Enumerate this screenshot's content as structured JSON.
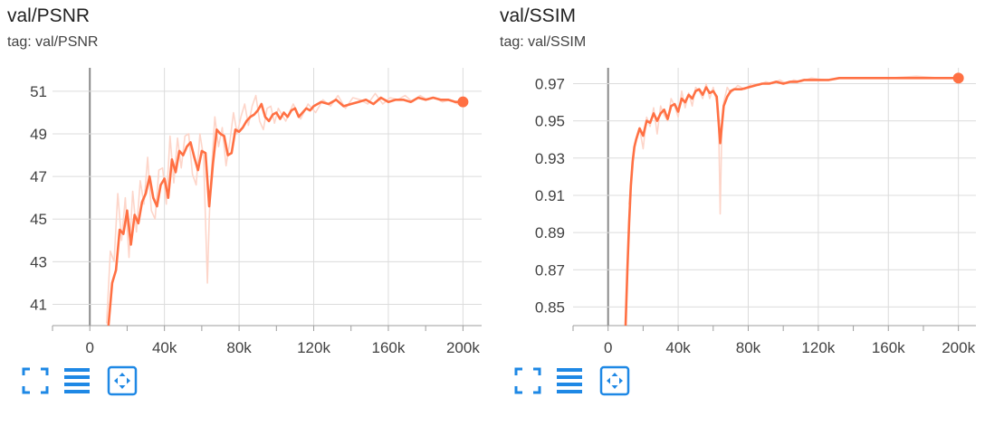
{
  "accent_color": "#ff7043",
  "icons": [
    "fullscreen-icon",
    "data-table-icon",
    "fit-domain-icon"
  ],
  "chart_data": [
    {
      "type": "line",
      "title": "val/PSNR",
      "subtitle": "tag: val/PSNR",
      "xlabel": "",
      "ylabel": "",
      "xlim": [
        -20000,
        210000
      ],
      "ylim": [
        40.0,
        52.1
      ],
      "x_ticks": [
        0,
        40000,
        80000,
        120000,
        160000,
        200000
      ],
      "x_tick_labels": [
        "0",
        "40k",
        "80k",
        "120k",
        "160k",
        "200k"
      ],
      "y_ticks": [
        41,
        43,
        45,
        47,
        49,
        51
      ],
      "y_tick_labels": [
        "41",
        "43",
        "45",
        "47",
        "49",
        "51"
      ],
      "grid": true,
      "legend": "none",
      "series": [
        {
          "smoothed": true,
          "color": "#ff7043",
          "x": [
            10000,
            12000,
            14000,
            16000,
            18000,
            20000,
            22000,
            24000,
            26000,
            28000,
            30000,
            32000,
            34000,
            36000,
            38000,
            40000,
            42000,
            44000,
            46000,
            48000,
            50000,
            52000,
            54000,
            56000,
            58000,
            60000,
            62000,
            64000,
            66000,
            68000,
            70000,
            72000,
            74000,
            76000,
            78000,
            80000,
            82000,
            84000,
            86000,
            88000,
            90000,
            92000,
            94000,
            96000,
            98000,
            100000,
            102000,
            104000,
            106000,
            108000,
            110000,
            112000,
            114000,
            116000,
            118000,
            120000,
            124000,
            128000,
            132000,
            136000,
            140000,
            144000,
            148000,
            152000,
            156000,
            160000,
            164000,
            168000,
            172000,
            176000,
            180000,
            184000,
            188000,
            192000,
            196000,
            200000
          ],
          "values": [
            40.0,
            42.0,
            42.6,
            44.5,
            44.3,
            45.4,
            43.8,
            45.2,
            44.8,
            45.8,
            46.2,
            47.0,
            46.0,
            45.6,
            46.6,
            46.9,
            46.0,
            47.8,
            47.2,
            48.2,
            48.0,
            48.4,
            48.6,
            47.9,
            47.3,
            48.2,
            48.1,
            45.6,
            47.6,
            49.2,
            49.0,
            48.9,
            48.0,
            48.1,
            49.2,
            49.1,
            49.3,
            49.6,
            49.8,
            49.9,
            50.1,
            50.4,
            49.8,
            49.6,
            49.9,
            50.0,
            49.7,
            50.0,
            49.8,
            50.1,
            50.2,
            49.8,
            50.0,
            50.2,
            50.1,
            50.3,
            50.5,
            50.4,
            50.6,
            50.3,
            50.4,
            50.5,
            50.6,
            50.4,
            50.7,
            50.5,
            50.6,
            50.6,
            50.5,
            50.7,
            50.6,
            50.7,
            50.6,
            50.6,
            50.5,
            50.5
          ]
        },
        {
          "smoothed": false,
          "color": "#fdd5c9",
          "x": [
            9000,
            11000,
            13000,
            15000,
            17000,
            19000,
            21000,
            23000,
            25000,
            27000,
            29000,
            31000,
            33000,
            35000,
            37000,
            39000,
            41000,
            43000,
            45000,
            47000,
            49000,
            51000,
            53000,
            55000,
            57000,
            59000,
            61000,
            63000,
            64000,
            65000,
            67000,
            69000,
            71000,
            73000,
            75000,
            77000,
            79000,
            81000,
            83000,
            85000,
            87000,
            89000,
            91000,
            93000,
            95000,
            97000,
            99000,
            101000,
            105000,
            109000,
            113000,
            117000,
            121000,
            125000,
            129000,
            133000,
            137000,
            141000,
            145000,
            149000,
            153000,
            157000,
            161000,
            165000,
            169000,
            173000,
            177000,
            181000,
            185000,
            189000,
            193000,
            197000,
            200000
          ],
          "values": [
            40.1,
            43.5,
            43.0,
            46.2,
            44.0,
            46.0,
            43.2,
            46.3,
            44.4,
            46.8,
            45.7,
            47.9,
            45.4,
            45.0,
            47.3,
            47.4,
            45.7,
            48.9,
            46.7,
            48.8,
            47.4,
            48.9,
            49.0,
            47.1,
            46.6,
            49.0,
            47.9,
            42.0,
            45.0,
            47.0,
            49.8,
            48.4,
            49.3,
            47.5,
            48.6,
            50.0,
            49.0,
            49.8,
            50.4,
            49.4,
            50.3,
            50.8,
            49.6,
            49.2,
            50.2,
            50.3,
            49.5,
            50.2,
            49.6,
            50.4,
            49.7,
            50.4,
            50.0,
            50.6,
            50.3,
            50.8,
            50.2,
            50.7,
            50.6,
            50.4,
            50.9,
            50.4,
            50.7,
            50.6,
            50.8,
            50.5,
            50.8,
            50.6,
            50.7,
            50.5,
            50.6,
            50.4,
            50.5
          ]
        }
      ]
    },
    {
      "type": "line",
      "title": "val/SSIM",
      "subtitle": "tag: val/SSIM",
      "xlabel": "",
      "ylabel": "",
      "xlim": [
        -20000,
        210000
      ],
      "ylim": [
        0.84,
        0.9785
      ],
      "x_ticks": [
        0,
        40000,
        80000,
        120000,
        160000,
        200000
      ],
      "x_tick_labels": [
        "0",
        "40k",
        "80k",
        "120k",
        "160k",
        "200k"
      ],
      "y_ticks": [
        0.85,
        0.87,
        0.89,
        0.91,
        0.93,
        0.95,
        0.97
      ],
      "y_tick_labels": [
        "0.85",
        "0.87",
        "0.89",
        "0.91",
        "0.93",
        "0.95",
        "0.97"
      ],
      "grid": true,
      "legend": "none",
      "series": [
        {
          "smoothed": true,
          "color": "#ff7043",
          "x": [
            10000,
            11000,
            12000,
            13000,
            14000,
            15000,
            16000,
            18000,
            20000,
            22000,
            24000,
            26000,
            28000,
            30000,
            32000,
            34000,
            36000,
            38000,
            40000,
            42000,
            44000,
            46000,
            48000,
            50000,
            52000,
            54000,
            56000,
            58000,
            60000,
            62000,
            64000,
            66000,
            68000,
            70000,
            72000,
            76000,
            80000,
            84000,
            88000,
            92000,
            96000,
            100000,
            104000,
            108000,
            112000,
            116000,
            120000,
            126000,
            132000,
            140000,
            148000,
            156000,
            164000,
            172000,
            180000,
            188000,
            196000,
            200000
          ],
          "values": [
            0.84,
            0.87,
            0.895,
            0.915,
            0.928,
            0.936,
            0.94,
            0.946,
            0.942,
            0.95,
            0.949,
            0.954,
            0.95,
            0.954,
            0.956,
            0.951,
            0.958,
            0.959,
            0.955,
            0.962,
            0.96,
            0.964,
            0.962,
            0.966,
            0.967,
            0.964,
            0.968,
            0.965,
            0.966,
            0.963,
            0.938,
            0.958,
            0.963,
            0.966,
            0.967,
            0.967,
            0.968,
            0.969,
            0.97,
            0.97,
            0.971,
            0.97,
            0.971,
            0.971,
            0.972,
            0.972,
            0.972,
            0.972,
            0.973,
            0.973,
            0.973,
            0.973,
            0.973,
            0.973,
            0.973,
            0.973,
            0.973,
            0.973
          ]
        },
        {
          "smoothed": false,
          "color": "#fdd5c9",
          "x": [
            12000,
            14000,
            16000,
            18000,
            20000,
            22000,
            24000,
            26000,
            28000,
            30000,
            32000,
            34000,
            36000,
            38000,
            40000,
            42000,
            44000,
            46000,
            48000,
            50000,
            52000,
            54000,
            56000,
            58000,
            60000,
            62000,
            63000,
            64000,
            65000,
            66000,
            68000,
            70000,
            74000,
            78000,
            82000,
            86000,
            90000,
            94000,
            98000,
            102000,
            106000,
            110000,
            116000,
            124000,
            134000,
            146000,
            160000,
            176000,
            190000,
            200000
          ],
          "values": [
            0.905,
            0.93,
            0.94,
            0.946,
            0.935,
            0.952,
            0.947,
            0.957,
            0.943,
            0.958,
            0.953,
            0.95,
            0.962,
            0.958,
            0.952,
            0.966,
            0.957,
            0.965,
            0.958,
            0.968,
            0.966,
            0.962,
            0.97,
            0.962,
            0.968,
            0.96,
            0.955,
            0.9,
            0.95,
            0.96,
            0.968,
            0.965,
            0.969,
            0.967,
            0.97,
            0.969,
            0.971,
            0.97,
            0.972,
            0.97,
            0.972,
            0.971,
            0.973,
            0.972,
            0.973,
            0.973,
            0.973,
            0.974,
            0.973,
            0.973
          ]
        }
      ]
    }
  ]
}
